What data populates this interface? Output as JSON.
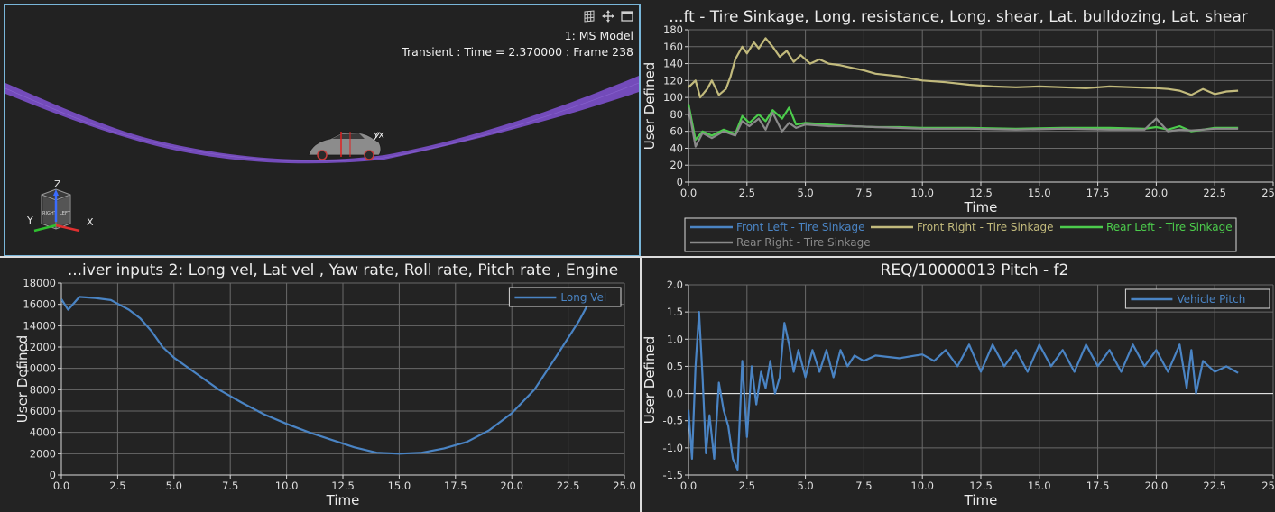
{
  "viewport": {
    "model_label": "1: MS Model",
    "status": "Transient : Time = 2.370000 : Frame 238",
    "icons": [
      "grid-icon",
      "move-icon",
      "window-icon"
    ],
    "triad_labels": {
      "z": "Z",
      "y": "Y",
      "x": "X"
    }
  },
  "colors": {
    "blue": "#4a84c4",
    "tan": "#c2ba7c",
    "green": "#4ccc4c",
    "gray": "#8a8a8a",
    "road": "#7b4fc8"
  },
  "chart_data": [
    {
      "id": "tire-chart",
      "type": "line",
      "title": "...ft - Tire Sinkage, Long. resistance, Long. shear, Lat. bulldozing, Lat. shear",
      "xlabel": "Time",
      "ylabel": "User Defined",
      "xlim": [
        0,
        25
      ],
      "ylim": [
        0,
        180
      ],
      "xticks": [
        "0.0",
        "2.5",
        "5.0",
        "7.5",
        "10.0",
        "12.5",
        "15.0",
        "17.5",
        "20.0",
        "22.5",
        "25.0"
      ],
      "yticks": [
        "0",
        "20",
        "40",
        "60",
        "80",
        "100",
        "120",
        "140",
        "160",
        "180"
      ],
      "grid": true,
      "legend": "bottom",
      "series": [
        {
          "name": "Front Left - Tire Sinkage",
          "color": "#4a84c4",
          "x": [],
          "y": []
        },
        {
          "name": "Front Right - Tire Sinkage",
          "color": "#c2ba7c",
          "x": [
            0,
            0.3,
            0.5,
            0.8,
            1.0,
            1.3,
            1.6,
            1.8,
            2.0,
            2.3,
            2.5,
            2.8,
            3.0,
            3.3,
            3.6,
            3.9,
            4.2,
            4.5,
            4.8,
            5.2,
            5.6,
            6.0,
            6.5,
            7.0,
            7.5,
            8.0,
            9.0,
            10.0,
            11.0,
            12.0,
            13.0,
            14.0,
            15.0,
            16.0,
            17.0,
            18.0,
            19.0,
            20.0,
            20.5,
            21.0,
            21.5,
            22.0,
            22.5,
            23.0,
            23.5
          ],
          "y": [
            112,
            120,
            100,
            110,
            120,
            103,
            110,
            125,
            145,
            160,
            152,
            165,
            158,
            170,
            160,
            148,
            155,
            142,
            150,
            140,
            145,
            140,
            138,
            135,
            132,
            128,
            125,
            120,
            118,
            115,
            113,
            112,
            113,
            112,
            111,
            113,
            112,
            111,
            110,
            108,
            103,
            110,
            104,
            107,
            108
          ]
        },
        {
          "name": "Rear Left - Tire Sinkage",
          "color": "#4ccc4c",
          "x": [
            0,
            0.3,
            0.6,
            1.0,
            1.5,
            2.0,
            2.3,
            2.6,
            3.0,
            3.3,
            3.6,
            4.0,
            4.3,
            4.6,
            5.0,
            6.0,
            7.0,
            8.0,
            9.0,
            10.0,
            12.0,
            14.0,
            16.0,
            18.0,
            19.5,
            20.0,
            20.5,
            21.0,
            21.5,
            22.0,
            22.5,
            23.5
          ],
          "y": [
            92,
            50,
            60,
            55,
            62,
            57,
            78,
            70,
            80,
            72,
            85,
            75,
            88,
            68,
            70,
            68,
            66,
            65,
            65,
            64,
            64,
            63,
            64,
            64,
            63,
            65,
            62,
            66,
            60,
            62,
            64,
            64
          ]
        },
        {
          "name": "Rear Right - Tire Sinkage",
          "color": "#8a8a8a",
          "x": [
            0,
            0.3,
            0.6,
            1.0,
            1.5,
            2.0,
            2.3,
            2.6,
            3.0,
            3.3,
            3.6,
            4.0,
            4.3,
            4.6,
            5.0,
            6.0,
            7.0,
            8.0,
            9.0,
            10.0,
            12.0,
            14.0,
            16.0,
            18.0,
            19.5,
            20.0,
            20.5,
            21.0,
            21.5,
            22.0,
            22.5,
            23.5
          ],
          "y": [
            88,
            42,
            58,
            52,
            60,
            55,
            72,
            66,
            75,
            62,
            82,
            60,
            70,
            64,
            68,
            66,
            66,
            65,
            64,
            63,
            63,
            62,
            63,
            62,
            62,
            75,
            60,
            62,
            61,
            62,
            63,
            63
          ]
        }
      ]
    },
    {
      "id": "vel-chart",
      "type": "line",
      "title": "...iver inputs 2:  Long vel, Lat vel , Yaw rate, Roll rate, Pitch rate , Engine",
      "xlabel": "Time",
      "ylabel": "User Defined",
      "xlim": [
        0,
        25
      ],
      "ylim": [
        0,
        18000
      ],
      "xticks": [
        "0.0",
        "2.5",
        "5.0",
        "7.5",
        "10.0",
        "12.5",
        "15.0",
        "17.5",
        "20.0",
        "22.5",
        "25.0"
      ],
      "yticks": [
        "0",
        "2000",
        "4000",
        "6000",
        "8000",
        "10000",
        "12000",
        "14000",
        "16000",
        "18000"
      ],
      "grid": true,
      "legend": "top-right",
      "series": [
        {
          "name": "Long Vel",
          "color": "#4a84c4",
          "x": [
            0,
            0.3,
            0.8,
            1.5,
            2.2,
            3.0,
            3.5,
            4.0,
            4.5,
            5.0,
            6.0,
            7.0,
            8.0,
            9.0,
            10.0,
            11.0,
            12.0,
            13.0,
            14.0,
            15.0,
            16.0,
            17.0,
            18.0,
            19.0,
            20.0,
            21.0,
            22.0,
            23.0,
            23.5
          ],
          "y": [
            16500,
            15500,
            16700,
            16600,
            16400,
            15500,
            14700,
            13500,
            12000,
            11000,
            9500,
            8000,
            6800,
            5700,
            4800,
            4000,
            3300,
            2600,
            2100,
            2000,
            2100,
            2500,
            3100,
            4200,
            5800,
            8000,
            11200,
            14500,
            16500
          ]
        }
      ]
    },
    {
      "id": "pitch-chart",
      "type": "line",
      "title": "REQ/10000013 Pitch - f2",
      "xlabel": "Time",
      "ylabel": "User Defined",
      "xlim": [
        0,
        25
      ],
      "ylim": [
        -1.5,
        2.0
      ],
      "xticks": [
        "0.0",
        "2.5",
        "5.0",
        "7.5",
        "10.0",
        "12.5",
        "15.0",
        "17.5",
        "20.0",
        "22.5",
        "25.0"
      ],
      "yticks": [
        "-1.5",
        "-1.0",
        "-0.5",
        "0.0",
        "0.5",
        "1.0",
        "1.5",
        "2.0"
      ],
      "grid": true,
      "legend": "top-right",
      "series": [
        {
          "name": "Vehicle Pitch",
          "color": "#4a84c4",
          "x": [
            0,
            0.15,
            0.3,
            0.45,
            0.6,
            0.75,
            0.9,
            1.1,
            1.3,
            1.5,
            1.7,
            1.9,
            2.1,
            2.3,
            2.5,
            2.7,
            2.9,
            3.1,
            3.3,
            3.5,
            3.7,
            3.9,
            4.1,
            4.3,
            4.5,
            4.7,
            5.0,
            5.3,
            5.6,
            5.9,
            6.2,
            6.5,
            6.8,
            7.1,
            7.5,
            8.0,
            9.0,
            10.0,
            10.5,
            11.0,
            11.5,
            12.0,
            12.5,
            13.0,
            13.5,
            14.0,
            14.5,
            15.0,
            15.5,
            16.0,
            16.5,
            17.0,
            17.5,
            18.0,
            18.5,
            19.0,
            19.5,
            20.0,
            20.5,
            21.0,
            21.3,
            21.5,
            21.7,
            22.0,
            22.5,
            23.0,
            23.5
          ],
          "y": [
            -0.3,
            -1.2,
            0.5,
            1.5,
            0.3,
            -1.1,
            -0.4,
            -1.2,
            0.2,
            -0.3,
            -0.6,
            -1.2,
            -1.4,
            0.6,
            -0.8,
            0.5,
            -0.2,
            0.4,
            0.1,
            0.6,
            0.0,
            0.3,
            1.3,
            0.9,
            0.4,
            0.8,
            0.3,
            0.8,
            0.4,
            0.8,
            0.3,
            0.8,
            0.5,
            0.7,
            0.6,
            0.7,
            0.65,
            0.72,
            0.6,
            0.8,
            0.5,
            0.9,
            0.4,
            0.9,
            0.5,
            0.8,
            0.4,
            0.9,
            0.5,
            0.8,
            0.4,
            0.9,
            0.5,
            0.8,
            0.4,
            0.9,
            0.5,
            0.8,
            0.4,
            0.9,
            0.1,
            0.8,
            0.0,
            0.6,
            0.4,
            0.5,
            0.38
          ]
        }
      ]
    }
  ]
}
